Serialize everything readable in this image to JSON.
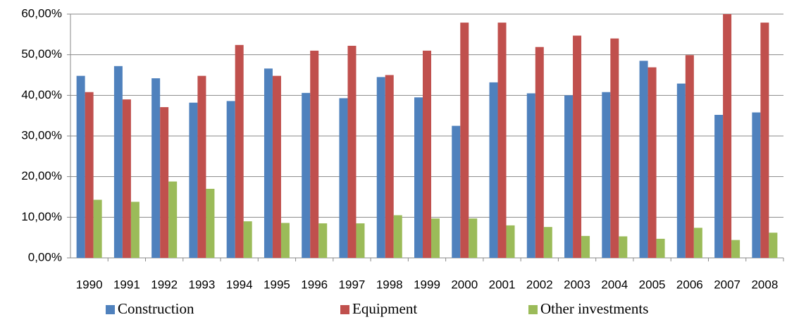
{
  "chart_data": {
    "type": "bar",
    "categories": [
      "1990",
      "1991",
      "1992",
      "1993",
      "1994",
      "1995",
      "1996",
      "1997",
      "1998",
      "1999",
      "2000",
      "2001",
      "2002",
      "2003",
      "2004",
      "2005",
      "2006",
      "2007",
      "2008"
    ],
    "series": [
      {
        "name": "Construction",
        "color": "#4f81bd",
        "values": [
          44.8,
          47.2,
          44.2,
          38.2,
          38.6,
          46.6,
          40.6,
          39.3,
          44.5,
          39.5,
          32.5,
          43.2,
          40.5,
          40.0,
          40.8,
          48.5,
          42.9,
          35.2,
          35.8
        ]
      },
      {
        "name": "Equipment",
        "color": "#c0504d",
        "values": [
          40.8,
          39.0,
          37.1,
          44.8,
          52.4,
          44.8,
          51.0,
          52.2,
          45.0,
          51.0,
          57.9,
          57.9,
          51.9,
          54.7,
          54.0,
          46.9,
          49.9,
          60.0,
          57.9
        ]
      },
      {
        "name": "Other investments",
        "color": "#9bbb59",
        "values": [
          14.3,
          13.8,
          18.8,
          17.0,
          9.0,
          8.6,
          8.5,
          8.5,
          10.5,
          9.7,
          9.7,
          8.0,
          7.6,
          5.4,
          5.3,
          4.7,
          7.4,
          4.4,
          6.2
        ]
      }
    ],
    "ylim": [
      0,
      60
    ],
    "yticks": [
      {
        "value": 0,
        "label": "0,00%"
      },
      {
        "value": 10,
        "label": "10,00%"
      },
      {
        "value": 20,
        "label": "20,00%"
      },
      {
        "value": 30,
        "label": "30,00%"
      },
      {
        "value": 40,
        "label": "40,00%"
      },
      {
        "value": 50,
        "label": "50,00%"
      },
      {
        "value": 60,
        "label": "60,00%"
      }
    ],
    "grid": true,
    "legend": "bottom"
  }
}
